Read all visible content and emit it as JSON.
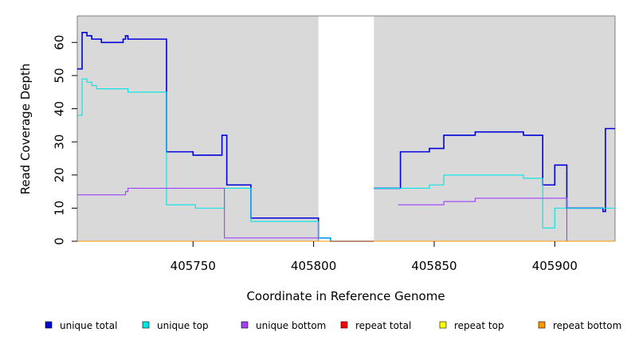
{
  "chart_data": {
    "type": "line",
    "step": true,
    "xlabel": "Coordinate in Reference Genome",
    "ylabel": "Read Coverage Depth",
    "xlim": [
      405702,
      405925
    ],
    "ylim": [
      0,
      68
    ],
    "xticks": [
      405750,
      405800,
      405850,
      405900
    ],
    "yticks": [
      0,
      10,
      20,
      30,
      40,
      50,
      60
    ],
    "background": "#d9d9d9",
    "gap_region": [
      405802,
      405825
    ],
    "legend_position": "bottom",
    "series": [
      {
        "name": "unique total",
        "color": "#0000dd",
        "x": [
          405702,
          405704,
          405706,
          405708,
          405710,
          405712,
          405721,
          405722,
          405723,
          405739,
          405750,
          405762,
          405764,
          405774,
          405802,
          405807,
          405825
        ],
        "y": [
          52,
          63,
          62,
          61,
          61,
          60,
          61,
          62,
          61,
          27,
          26,
          32,
          17,
          7,
          1,
          0,
          0
        ]
      },
      {
        "name": "unique top",
        "color": "#00e5e5",
        "x": [
          405702,
          405704,
          405706,
          405708,
          405710,
          405713,
          405723,
          405739,
          405751,
          405763,
          405774,
          405802,
          405807,
          405825
        ],
        "y": [
          38,
          49,
          48,
          47,
          46,
          46,
          45,
          11,
          10,
          16,
          6,
          1,
          0,
          0
        ]
      },
      {
        "name": "unique bottom",
        "color": "#a040ff",
        "x": [
          405702,
          405721,
          405722,
          405723,
          405763,
          405802,
          405825
        ],
        "y": [
          14,
          14,
          15,
          16,
          1,
          0,
          0
        ]
      },
      {
        "name": "repeat total",
        "color": "#ff0000",
        "x": [
          405702,
          405802
        ],
        "y": [
          0,
          0
        ]
      },
      {
        "name": "repeat top",
        "color": "#ffff00",
        "x": [
          405702,
          405802
        ],
        "y": [
          0,
          0
        ]
      },
      {
        "name": "repeat bottom",
        "color": "#ff9900",
        "x": [
          405702,
          405925
        ],
        "y": [
          0,
          0
        ]
      },
      {
        "name": "unique total (2)",
        "color": "#0000dd",
        "x": [
          405825,
          405836,
          405848,
          405854,
          405867,
          405887,
          405895,
          405900,
          405905,
          405920,
          405921,
          405925
        ],
        "y": [
          16,
          27,
          28,
          32,
          33,
          32,
          17,
          23,
          10,
          9,
          34,
          34
        ]
      },
      {
        "name": "unique top (2)",
        "color": "#00e5e5",
        "x": [
          405825,
          405848,
          405854,
          405887,
          405895,
          405900,
          405905,
          405925
        ],
        "y": [
          16,
          17,
          20,
          19,
          4,
          10,
          10,
          10
        ]
      },
      {
        "name": "unique bottom (2)",
        "color": "#a040ff",
        "x": [
          405835,
          405854,
          405867,
          405905,
          405925
        ],
        "y": [
          11,
          12,
          13,
          0,
          0
        ]
      }
    ],
    "legend": [
      {
        "label": "unique total",
        "color": "#0000dd"
      },
      {
        "label": "unique top",
        "color": "#00e5e5"
      },
      {
        "label": "unique bottom",
        "color": "#a040ff"
      },
      {
        "label": "repeat total",
        "color": "#ff0000"
      },
      {
        "label": "repeat top",
        "color": "#ffff00"
      },
      {
        "label": "repeat bottom",
        "color": "#ff9900"
      }
    ]
  }
}
